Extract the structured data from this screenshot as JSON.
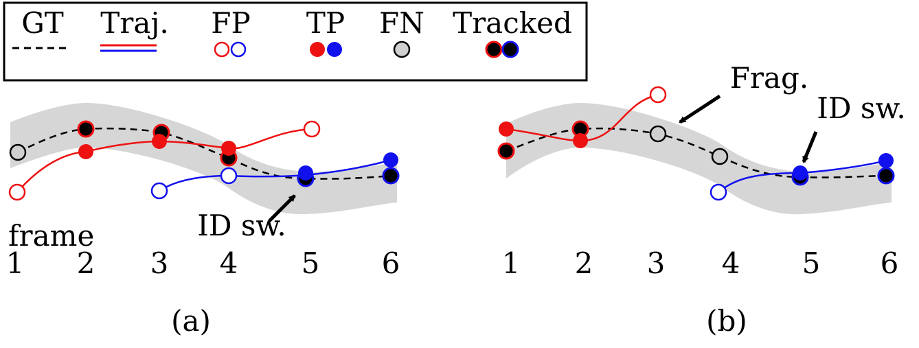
{
  "legend": {
    "gt": "GT",
    "traj": "Traj.",
    "fp": "FP",
    "tp": "TP",
    "fn": "FN",
    "tracked": "Tracked"
  },
  "panel_a": {
    "axis_label": "frame",
    "frames": [
      "1",
      "2",
      "3",
      "4",
      "5",
      "6"
    ],
    "id_switch_label": "ID sw.",
    "caption": "(a)"
  },
  "panel_b": {
    "frames": [
      "1",
      "2",
      "3",
      "4",
      "5",
      "6"
    ],
    "frag_label": "Frag.",
    "id_switch_label": "ID sw.",
    "caption": "(b)"
  },
  "colors": {
    "red": "#ee1111",
    "blue": "#1111ee",
    "gray_band": "#d6d6d6",
    "fn_fill": "#d0d0d0",
    "gt_line": "#000000"
  }
}
